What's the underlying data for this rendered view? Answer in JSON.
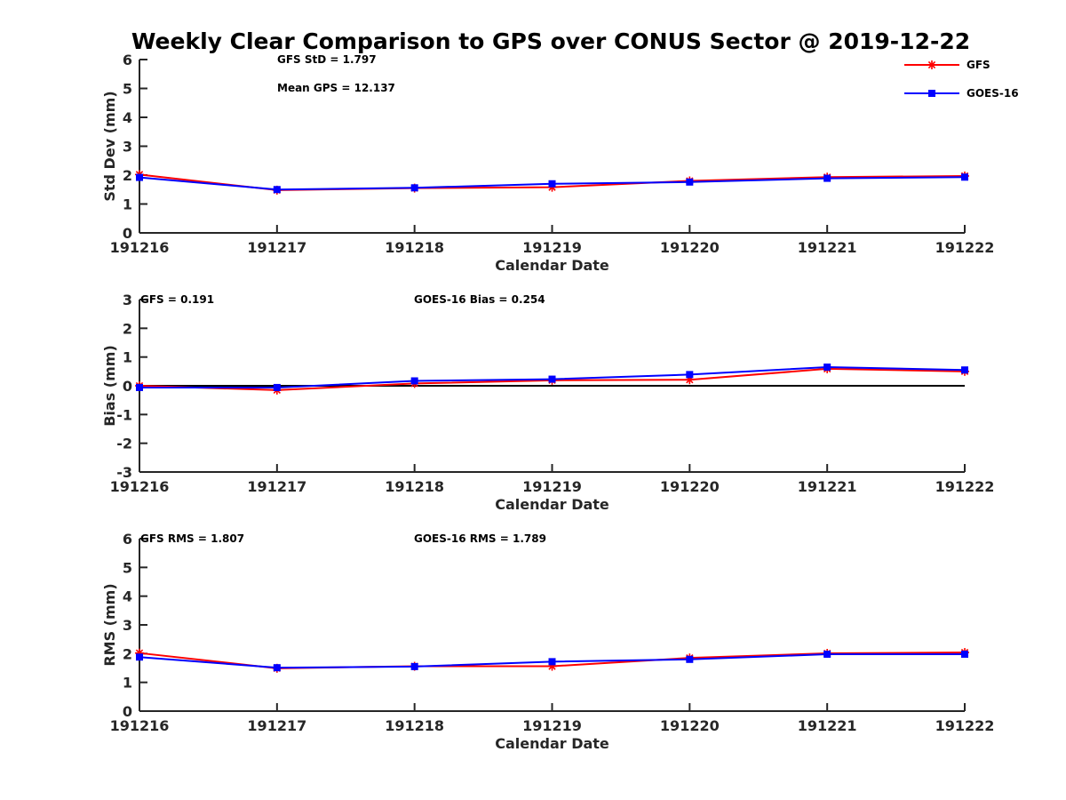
{
  "figure_title": "Weekly Clear Comparison to GPS over CONUS Sector @ 2019-12-22",
  "chart_data": [
    {
      "type": "line",
      "categories": [
        "191216",
        "191217",
        "191218",
        "191219",
        "191220",
        "191221",
        "191222"
      ],
      "xlabel": "Calendar Date",
      "ylabel": "Std Dev (mm)",
      "ylim": [
        0,
        6
      ],
      "yticks": [
        "0",
        "1",
        "2",
        "3",
        "4",
        "5",
        "6"
      ],
      "zero_line": false,
      "annotations": [
        "GFS StD = 1.797",
        "Mean GPS = 12.137"
      ],
      "legend": [
        "GFS",
        "GOES-16"
      ],
      "legend_position": "top-right",
      "series": [
        {
          "name": "GFS",
          "color": "#ff0000",
          "marker": "asterisk",
          "values": [
            2.02,
            1.48,
            1.55,
            1.58,
            1.8,
            1.93,
            1.97
          ]
        },
        {
          "name": "GOES-16",
          "color": "#0000ff",
          "marker": "square",
          "values": [
            1.92,
            1.5,
            1.56,
            1.7,
            1.76,
            1.89,
            1.93
          ]
        }
      ]
    },
    {
      "type": "line",
      "categories": [
        "191216",
        "191217",
        "191218",
        "191219",
        "191220",
        "191221",
        "191222"
      ],
      "xlabel": "Calendar Date",
      "ylabel": "Bias (mm)",
      "ylim": [
        -3,
        3
      ],
      "yticks": [
        "-3",
        "-2",
        "-1",
        "0",
        "1",
        "2",
        "3"
      ],
      "zero_line": true,
      "annotations": [
        "GFS = 0.191",
        "GOES-16 Bias  = 0.254"
      ],
      "series": [
        {
          "name": "GFS",
          "color": "#ff0000",
          "marker": "asterisk",
          "values": [
            0.0,
            -0.15,
            0.08,
            0.19,
            0.21,
            0.59,
            0.5
          ]
        },
        {
          "name": "GOES-16",
          "color": "#0000ff",
          "marker": "square",
          "values": [
            -0.06,
            -0.06,
            0.17,
            0.23,
            0.39,
            0.65,
            0.55
          ]
        }
      ]
    },
    {
      "type": "line",
      "categories": [
        "191216",
        "191217",
        "191218",
        "191219",
        "191220",
        "191221",
        "191222"
      ],
      "xlabel": "Calendar Date",
      "ylabel": "RMS (mm)",
      "ylim": [
        0,
        6
      ],
      "yticks": [
        "0",
        "1",
        "2",
        "3",
        "4",
        "5",
        "6"
      ],
      "zero_line": false,
      "annotations": [
        "GFS RMS = 1.807",
        "GOES-16 RMS = 1.789"
      ],
      "series": [
        {
          "name": "GFS",
          "color": "#ff0000",
          "marker": "asterisk",
          "values": [
            2.02,
            1.49,
            1.56,
            1.56,
            1.85,
            2.01,
            2.04
          ]
        },
        {
          "name": "GOES-16",
          "color": "#0000ff",
          "marker": "square",
          "values": [
            1.88,
            1.51,
            1.55,
            1.72,
            1.8,
            1.98,
            1.98
          ]
        }
      ]
    }
  ]
}
